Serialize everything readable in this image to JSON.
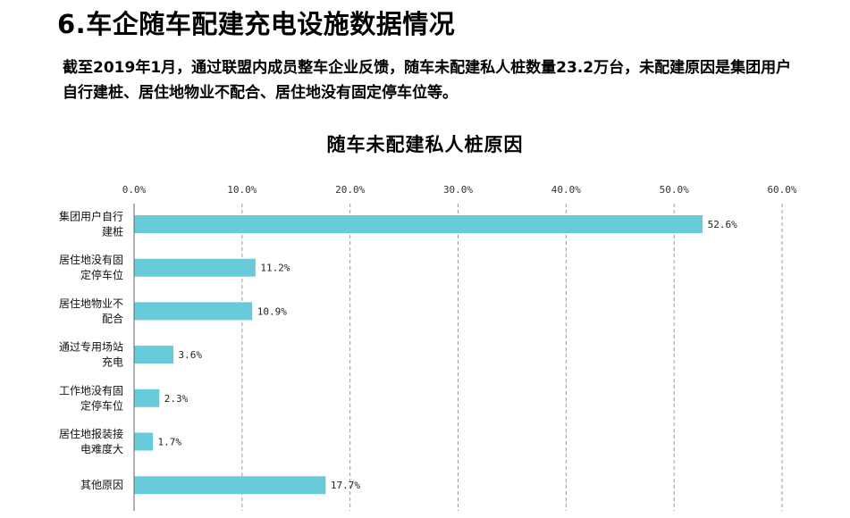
{
  "page": {
    "title": "6.车企随车配建充电设施数据情况",
    "description": "截至2019年1月，通过联盟内成员整车企业反馈，随车未配建私人桩数量23.2万台，未配建原因是集团用户自行建桩、居住地物业不配合、居住地没有固定停车位等。"
  },
  "chart_data": {
    "type": "bar",
    "orientation": "horizontal",
    "title": "随车未配建私人桩原因",
    "categories": [
      [
        "集团用户自行",
        "建桩"
      ],
      [
        "居住地没有固",
        "定停车位"
      ],
      [
        "居住地物业不",
        "配合"
      ],
      [
        "通过专用场站",
        "充电"
      ],
      [
        "工作地没有固",
        "定停车位"
      ],
      [
        "居住地报装接",
        "电难度大"
      ],
      [
        "其他原因"
      ]
    ],
    "values": [
      52.6,
      11.2,
      10.9,
      3.6,
      2.3,
      1.7,
      17.7
    ],
    "data_labels": [
      "52.6%",
      "11.2%",
      "10.9%",
      "3.6%",
      "2.3%",
      "1.7%",
      "17.7%"
    ],
    "xlim": [
      0,
      60
    ],
    "ticks": [
      0,
      10,
      20,
      30,
      40,
      50,
      60
    ],
    "tick_labels": [
      "0.0%",
      "10.0%",
      "20.0%",
      "30.0%",
      "40.0%",
      "50.0%",
      "60.0%"
    ],
    "axis_position": "top",
    "grid": "vertical dashed",
    "bar_color": "#67CBD9",
    "grid_color": "#9a9a9a"
  }
}
